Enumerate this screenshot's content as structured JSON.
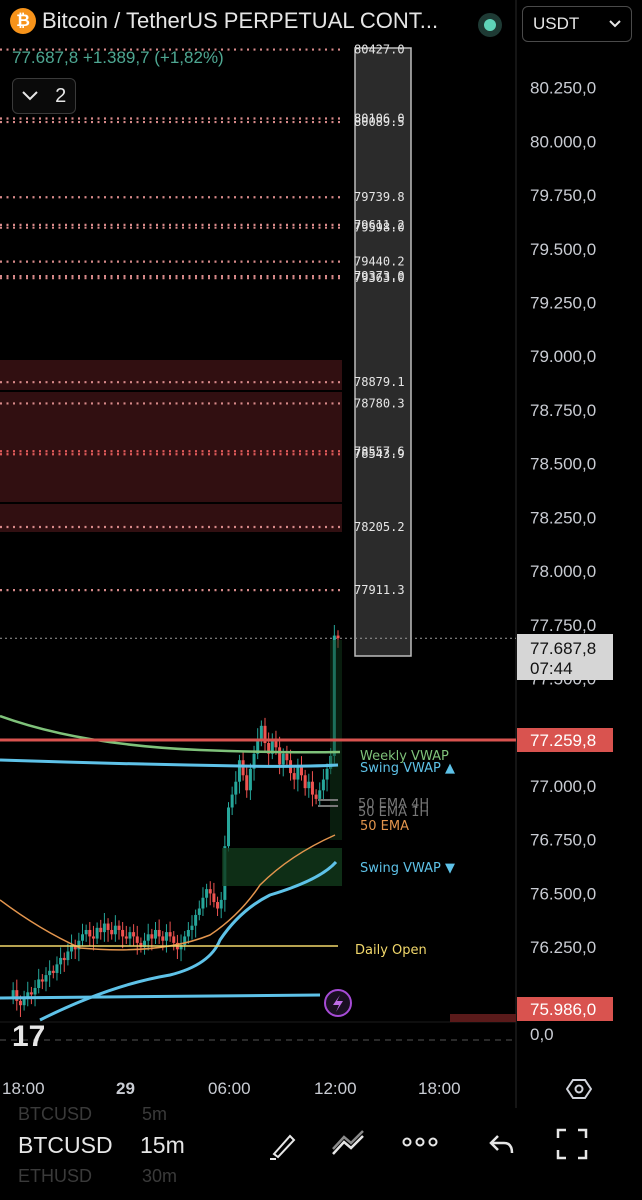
{
  "header": {
    "coin_symbol": "₿",
    "title": "Bitcoin / TetherUS PERPETUAL CONT...",
    "currency": "USDT",
    "quote_line": "77.687,8 +1.389,7 (+1,82%)",
    "collapse_count": "2",
    "live_dot_color": "#5fd3b8"
  },
  "levels": [
    "80427.0",
    "80106.0",
    "80089.5",
    "79739.8",
    "79611.2",
    "79598.0",
    "79440.2",
    "79373.0",
    "79363.0",
    "78879.1",
    "78780.3",
    "78557.6",
    "78543.9",
    "78205.2",
    "77911.3"
  ],
  "price_axis": [
    "80.250,0",
    "80.000,0",
    "79.750,0",
    "79.500,0",
    "79.250,0",
    "79.000,0",
    "78.750,0",
    "78.500,0",
    "78.250,0",
    "78.000,0",
    "77.750,0",
    "77.500,0",
    "77.000,0",
    "76.750,0",
    "76.500,0",
    "76.250,0",
    "0,0"
  ],
  "last_price": {
    "price": "77.687,8",
    "countdown": "07:44"
  },
  "vwap_price": "77.259,8",
  "daily_open_price": "75.986,0",
  "indicator_labels": {
    "weekly_vwap": "Weekly VWAP",
    "swing_vwap_up": "Swing VWAP ▲",
    "ema_4h": "50 EMA 4H",
    "ema_1h": "50 EMA 1H",
    "ema_50": "50 EMA",
    "swing_vwap_down": "Swing VWAP ▼",
    "daily_open": "Daily Open"
  },
  "time_axis": [
    "18:00",
    "29",
    "06:00",
    "12:00",
    "18:00"
  ],
  "toolbar": {
    "symbol": "BTCUSD",
    "interval": "15m",
    "ghost_above_symbol": "BTCUSD",
    "ghost_above_interval": "5m",
    "ghost_below_symbol": "ETHUSD",
    "ghost_below_interval": "30m"
  },
  "colors": {
    "up": "#26a69a",
    "down": "#ef5350",
    "vwap_weekly": "#7fc27a",
    "swing_vwap": "#5ec2e8",
    "ema_orange": "#e3954d",
    "daily_open": "#f2d86b",
    "red_level": "#e05a5a"
  },
  "chart_data": {
    "type": "candlestick",
    "symbol": "BTCUSD",
    "interval": "15m",
    "last_price": 77687.8,
    "y_axis_range": [
      75900,
      80450
    ],
    "horizontal_levels": [
      80427.0,
      80106.0,
      80089.5,
      79739.8,
      79611.2,
      79598.0,
      79440.2,
      79373.0,
      79363.0,
      78879.1,
      78780.3,
      78557.6,
      78543.9,
      78205.2,
      77911.3
    ],
    "price_lines": {
      "vwap": 77259.8,
      "daily_open": 75986.0
    },
    "x_ticks": [
      "18:00",
      "29",
      "06:00",
      "12:00",
      "18:00"
    ],
    "closes": [
      76020,
      76050,
      76000,
      75980,
      76010,
      76040,
      76030,
      76060,
      76100,
      76090,
      76120,
      76140,
      76130,
      76170,
      76200,
      76190,
      76230,
      76260,
      76240,
      76280,
      76310,
      76330,
      76300,
      76290,
      76340,
      76320,
      76360,
      76330,
      76310,
      76350,
      76330,
      76300,
      76290,
      76320,
      76300,
      76270,
      76250,
      76280,
      76310,
      76290,
      76330,
      76300,
      76280,
      76320,
      76300,
      76270,
      76240,
      76260,
      76300,
      76330,
      76350,
      76400,
      76430,
      76480,
      76520,
      76500,
      76460,
      76430,
      76470,
      76720,
      76900,
      76960,
      77020,
      77120,
      77050,
      76980,
      77080,
      77150,
      77220,
      77280,
      77200,
      77150,
      77220,
      77180,
      77100,
      77150,
      77120,
      77060,
      77030,
      77090,
      77050,
      76990,
      77020,
      76960,
      76940,
      76980,
      77030,
      77080,
      77140,
      77700,
      77687.8
    ]
  }
}
